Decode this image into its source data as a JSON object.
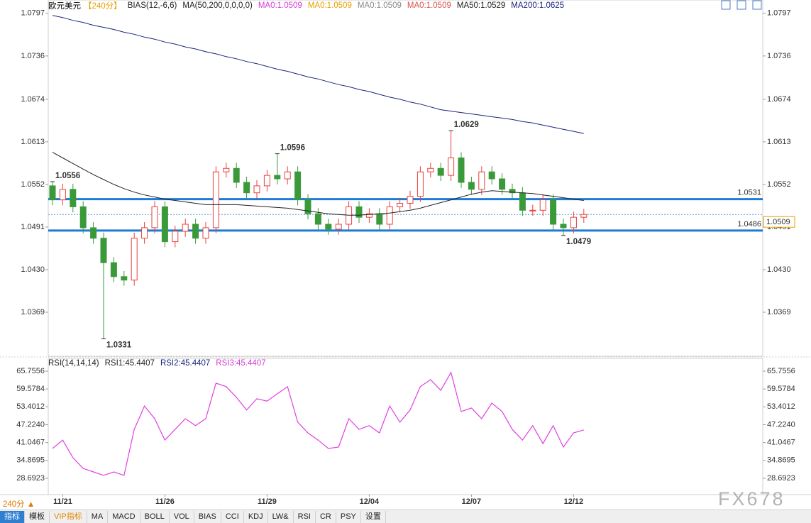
{
  "chart_data": [
    {
      "type": "candlestick",
      "title": "欧元美元",
      "period": "【240分】",
      "header_items": [
        {
          "text": "BIAS(12,-6,6)",
          "color": "#222222"
        },
        {
          "text": "MA(50,200,0,0,0,0)",
          "color": "#222222"
        },
        {
          "text": "MA0:1.0509",
          "color": "#d63bd6"
        },
        {
          "text": "MA0:1.0509",
          "color": "#e8a000"
        },
        {
          "text": "MA0:1.0509",
          "color": "#8a8a8a"
        },
        {
          "text": "MA0:1.0509",
          "color": "#d9534f"
        }
      ],
      "categories": [
        null,
        "11/21",
        null,
        null,
        null,
        null,
        null,
        null,
        null,
        null,
        null,
        "11/26",
        null,
        null,
        null,
        null,
        null,
        null,
        null,
        null,
        null,
        "11/29",
        null,
        null,
        null,
        null,
        null,
        null,
        null,
        null,
        null,
        "12/04",
        null,
        null,
        null,
        null,
        null,
        null,
        null,
        null,
        null,
        "12/07",
        null,
        null,
        null,
        null,
        null,
        null,
        null,
        null,
        null,
        "12/12",
        null
      ],
      "open": [
        1.055,
        1.053,
        1.0545,
        1.052,
        1.049,
        1.0475,
        1.044,
        1.042,
        1.0415,
        1.0475,
        1.049,
        1.052,
        1.047,
        1.0485,
        1.0495,
        1.0475,
        1.049,
        1.057,
        1.0575,
        1.0555,
        1.054,
        1.055,
        1.0565,
        1.056,
        1.057,
        1.053,
        1.051,
        1.0495,
        1.0488,
        1.0495,
        1.052,
        1.0505,
        1.051,
        1.0495,
        1.052,
        1.0525,
        1.0535,
        1.057,
        1.0575,
        1.0565,
        1.059,
        1.0555,
        1.0545,
        1.057,
        1.056,
        1.0545,
        1.054,
        1.0515,
        1.0515,
        1.053,
        1.0495,
        1.049,
        1.0505
      ],
      "high": [
        1.0556,
        1.0553,
        1.0553,
        1.0528,
        1.0498,
        1.0483,
        1.0448,
        1.0428,
        1.0483,
        1.0498,
        1.0528,
        1.0528,
        1.0493,
        1.0503,
        1.0503,
        1.0498,
        1.0578,
        1.0583,
        1.0583,
        1.0563,
        1.0558,
        1.0573,
        1.0596,
        1.0578,
        1.0578,
        1.0538,
        1.0518,
        1.0503,
        1.0503,
        1.0528,
        1.0528,
        1.0518,
        1.0518,
        1.0528,
        1.0533,
        1.0543,
        1.0578,
        1.0583,
        1.0583,
        1.0629,
        1.0598,
        1.0563,
        1.0578,
        1.0578,
        1.0568,
        1.0553,
        1.0548,
        1.0523,
        1.0538,
        1.0538,
        1.0503,
        1.0513,
        1.0517
      ],
      "low": [
        1.0522,
        1.0522,
        1.0512,
        1.0482,
        1.0467,
        1.0331,
        1.0412,
        1.0407,
        1.0407,
        1.0467,
        1.0482,
        1.0462,
        1.0462,
        1.0477,
        1.0467,
        1.0467,
        1.0482,
        1.0562,
        1.0547,
        1.0532,
        1.0532,
        1.0542,
        1.0552,
        1.0552,
        1.0522,
        1.0502,
        1.0487,
        1.048,
        1.048,
        1.0487,
        1.0497,
        1.0497,
        1.0487,
        1.0487,
        1.0512,
        1.0517,
        1.0527,
        1.0562,
        1.0557,
        1.0557,
        1.0547,
        1.0537,
        1.0537,
        1.0552,
        1.0537,
        1.0532,
        1.0507,
        1.0507,
        1.0507,
        1.0487,
        1.0479,
        1.0482,
        1.0497
      ],
      "close": [
        1.053,
        1.0545,
        1.052,
        1.049,
        1.0475,
        1.044,
        1.042,
        1.0415,
        1.0475,
        1.049,
        1.052,
        1.047,
        1.0485,
        1.0495,
        1.0475,
        1.049,
        1.057,
        1.0575,
        1.0555,
        1.054,
        1.055,
        1.0565,
        1.056,
        1.057,
        1.053,
        1.051,
        1.0495,
        1.0488,
        1.0495,
        1.052,
        1.0505,
        1.051,
        1.0495,
        1.052,
        1.0525,
        1.0535,
        1.057,
        1.0575,
        1.0565,
        1.059,
        1.0555,
        1.0545,
        1.057,
        1.056,
        1.0545,
        1.054,
        1.0515,
        1.0515,
        1.053,
        1.0495,
        1.049,
        1.0505,
        1.0509
      ],
      "up_color": "#e8413d",
      "down_color": "#3a9a3a",
      "series": [
        {
          "name": "MA50:1.0529",
          "color": "#222222",
          "values": [
            1.0598,
            1.059,
            1.0582,
            1.0574,
            1.0566,
            1.0559,
            1.0552,
            1.0546,
            1.0541,
            1.0537,
            1.0534,
            1.0531,
            1.0529,
            1.0527,
            1.0525,
            1.0523,
            1.0523,
            1.0523,
            1.0523,
            1.0522,
            1.0521,
            1.052,
            1.0519,
            1.0518,
            1.0516,
            1.0514,
            1.0512,
            1.051,
            1.0509,
            1.0508,
            1.0508,
            1.0509,
            1.051,
            1.0511,
            1.0513,
            1.0515,
            1.0518,
            1.0522,
            1.0526,
            1.053,
            1.0534,
            1.0538,
            1.0541,
            1.0543,
            1.0542,
            1.0541,
            1.054,
            1.0539,
            1.0537,
            1.0535,
            1.0533,
            1.0531,
            1.0529
          ]
        },
        {
          "name": "MA200:1.0625",
          "color": "#1a237e",
          "values": [
            1.0794,
            1.0791,
            1.0787,
            1.0784,
            1.078,
            1.0777,
            1.0774,
            1.077,
            1.0767,
            1.0763,
            1.076,
            1.0756,
            1.0753,
            1.0749,
            1.0746,
            1.0742,
            1.0739,
            1.0735,
            1.0732,
            1.0728,
            1.0725,
            1.0721,
            1.0717,
            1.0714,
            1.071,
            1.0706,
            1.0703,
            1.0699,
            1.0695,
            1.0692,
            1.0688,
            1.0685,
            1.0681,
            1.0677,
            1.0674,
            1.067,
            1.0667,
            1.0663,
            1.0659,
            1.0657,
            1.0655,
            1.0653,
            1.0651,
            1.0649,
            1.0647,
            1.0645,
            1.0642,
            1.064,
            1.0637,
            1.0634,
            1.0631,
            1.0628,
            1.0625
          ]
        }
      ],
      "annotations": [
        {
          "value": 1.0556
        },
        {
          "value": 1.0596
        },
        {
          "value": 1.0629
        },
        {
          "value": 1.0331
        },
        {
          "value": 1.0479
        }
      ],
      "hlines": [
        {
          "value": 1.0531,
          "color": "#1c7cd5"
        },
        {
          "value": 1.0486,
          "color": "#1c7cd5"
        }
      ],
      "last_price": 1.0509,
      "ylim": [
        1.0308,
        1.0808
      ],
      "yticks": [
        1.0797,
        1.0736,
        1.0674,
        1.0613,
        1.0552,
        1.0491,
        {
          "value": 1.043,
          "label": "1.0430"
        },
        1.0369
      ]
    },
    {
      "type": "line",
      "header_items": [
        {
          "text": "RSI(14,14,14)",
          "color": "#222222"
        },
        {
          "text": "RSI1:45.4407",
          "color": "#222222"
        },
        {
          "text": "RSI2:45.4407",
          "color": "#1a237e"
        },
        {
          "text": "RSI3:45.4407",
          "color": "#d63bd6"
        }
      ],
      "series": [
        {
          "color": "#e040e0",
          "values": [
            39.0,
            41.9,
            35.8,
            32.1,
            30.9,
            29.7,
            30.9,
            29.7,
            45.6,
            53.7,
            49.3,
            41.9,
            45.6,
            49.3,
            46.9,
            49.3,
            61.6,
            60.4,
            56.7,
            52.3,
            56.2,
            55.4,
            57.9,
            60.4,
            48.1,
            44.4,
            41.9,
            39.0,
            39.5,
            49.3,
            45.6,
            46.9,
            44.4,
            53.7,
            48.1,
            52.3,
            60.4,
            62.8,
            59.1,
            65.3,
            51.8,
            53.0,
            49.3,
            54.7,
            51.8,
            45.6,
            41.9,
            46.9,
            40.7,
            46.9,
            39.5,
            44.4,
            45.4407
          ]
        }
      ],
      "ylim": [
        23.05,
        70.17
      ],
      "yticks": [
        65.7556,
        59.5784,
        53.4012,
        {
          "value": 47.224,
          "label": "47.2240"
        },
        41.0467,
        34.8695,
        28.6923
      ]
    }
  ],
  "toolbar": {
    "period": "240分 ▲",
    "tabs": [
      "指标",
      "模板",
      "VIP指标",
      "MA",
      "MACD",
      "BOLL",
      "VOL",
      "BIAS",
      "CCI",
      "KDJ",
      "LW&",
      "RSI",
      "CR",
      "PSY",
      "设置"
    ]
  },
  "watermark": "FX678"
}
